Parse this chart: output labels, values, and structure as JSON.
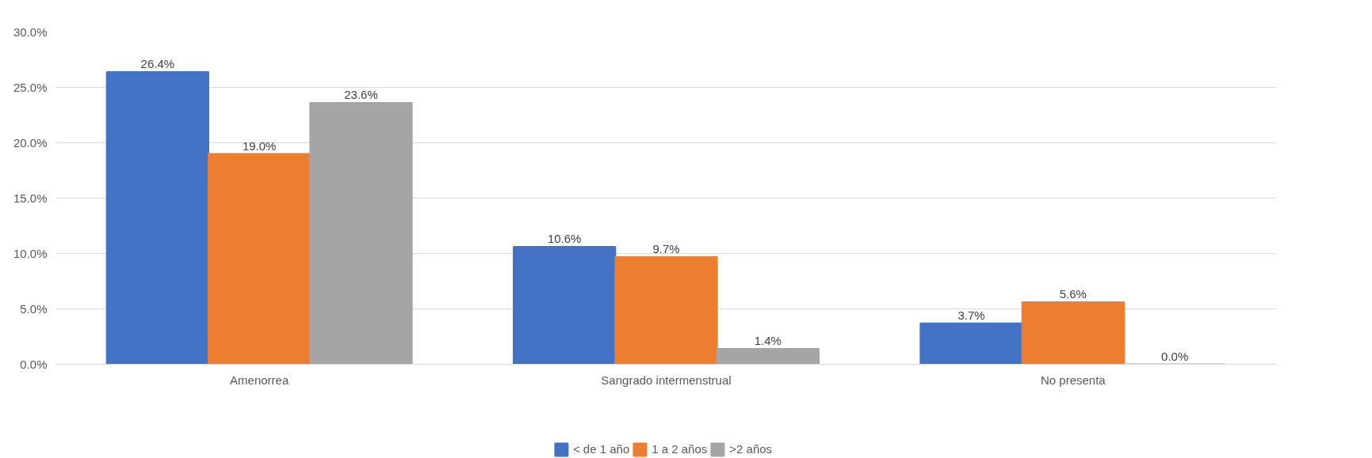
{
  "chart_data": {
    "type": "bar",
    "categories": [
      "Amenorrea",
      "Sangrado intermenstrual",
      "No presenta"
    ],
    "series": [
      {
        "name": "< de 1 año",
        "color": "#4472c4",
        "values": [
          26.4,
          10.6,
          3.7
        ],
        "value_labels": [
          "26.4%",
          "10.6%",
          "3.7%"
        ]
      },
      {
        "name": "1 a 2 años",
        "color": "#ed7d31",
        "values": [
          19.0,
          9.7,
          5.6
        ],
        "value_labels": [
          "19.0%",
          "9.7%",
          "5.6%"
        ]
      },
      {
        "name": ">2 años",
        "color": "#a5a5a5",
        "values": [
          23.6,
          1.4,
          0.0
        ],
        "value_labels": [
          "23.6%",
          "1.4%",
          "0.0%"
        ]
      }
    ],
    "ylim": [
      0,
      30
    ],
    "yticks": [
      {
        "value": 0,
        "label": "0.0%"
      },
      {
        "value": 5,
        "label": "5.0%"
      },
      {
        "value": 10,
        "label": "10.0%"
      },
      {
        "value": 15,
        "label": "15.0%"
      },
      {
        "value": 20,
        "label": "20.0%"
      },
      {
        "value": 25,
        "label": "25.0%"
      },
      {
        "value": 30,
        "label": "30.0%"
      }
    ],
    "grid": "y",
    "legend": "bottom"
  }
}
